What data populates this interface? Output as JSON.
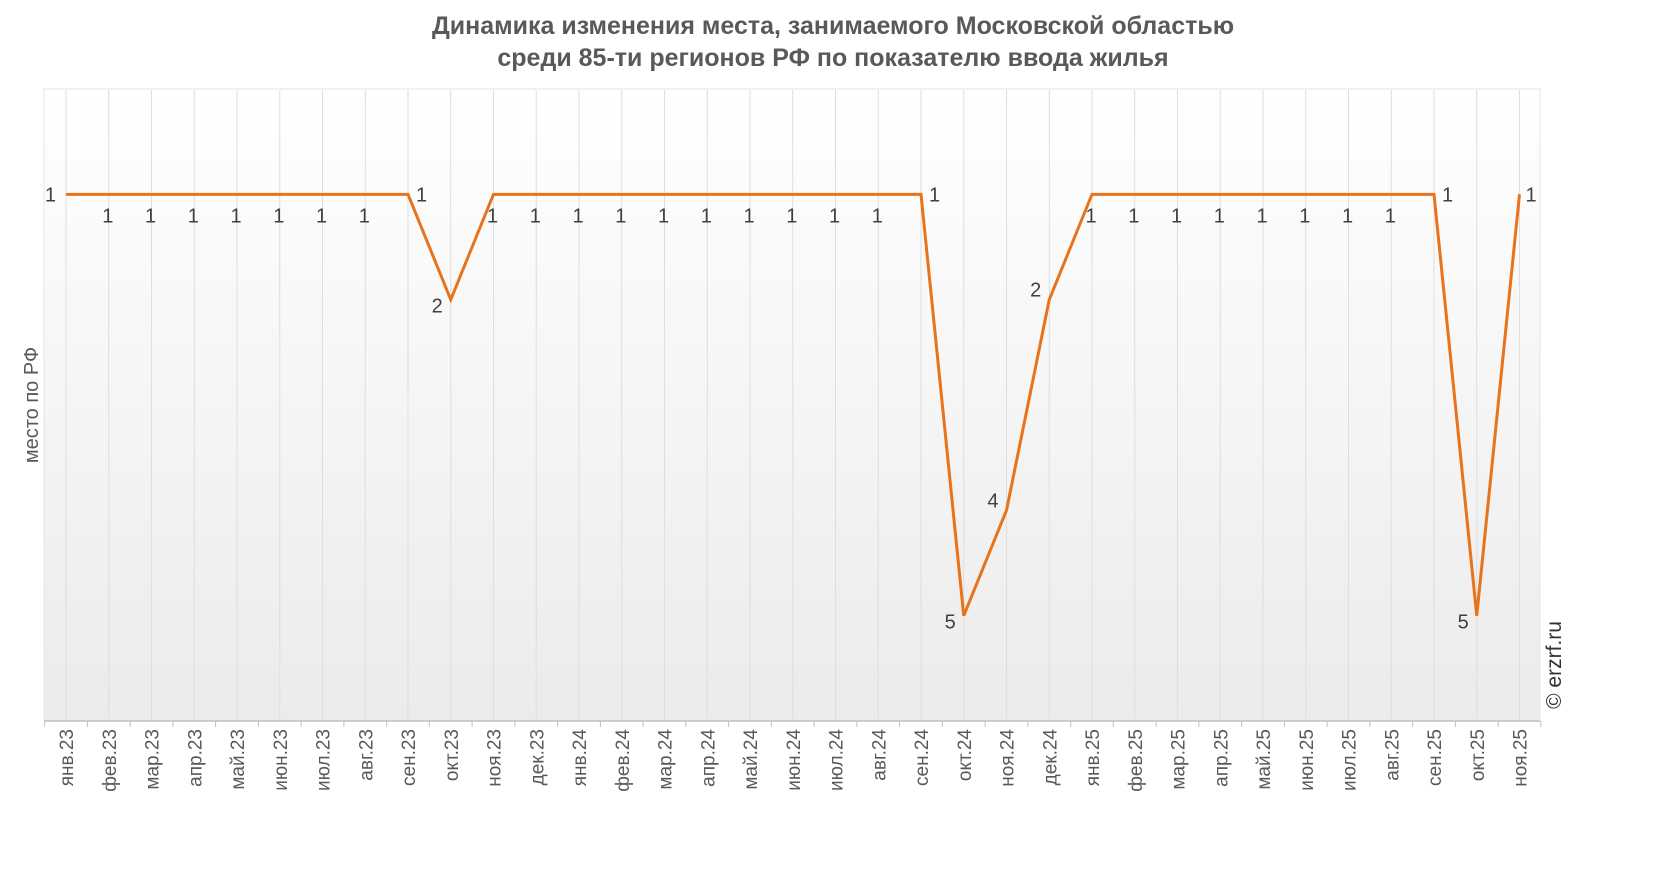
{
  "chart_data": {
    "type": "line",
    "title_lines": [
      "Динамика изменения места, занимаемого Московской областью",
      "среди 85-ти регионов РФ по показателю ввода жилья"
    ],
    "xlabel": "",
    "ylabel": "место по РФ",
    "y_reversed": true,
    "ylim": [
      0,
      6
    ],
    "grid": "vertical",
    "categories": [
      "янв.23",
      "фев.23",
      "мар.23",
      "апр.23",
      "май.23",
      "июн.23",
      "июл.23",
      "авг.23",
      "сен.23",
      "окт.23",
      "ноя.23",
      "дек.23",
      "янв.24",
      "фев.24",
      "мар.24",
      "апр.24",
      "май.24",
      "июн.24",
      "июл.24",
      "авг.24",
      "сен.24",
      "окт.24",
      "ноя.24",
      "дек.24",
      "янв.25",
      "фев.25",
      "мар.25",
      "апр.25",
      "май.25",
      "июн.25",
      "июл.25",
      "авг.25",
      "сен.25",
      "окт.25",
      "ноя.25"
    ],
    "series": [
      {
        "values": [
          1,
          1,
          1,
          1,
          1,
          1,
          1,
          1,
          1,
          2,
          1,
          1,
          1,
          1,
          1,
          1,
          1,
          1,
          1,
          1,
          1,
          5,
          4,
          2,
          1,
          1,
          1,
          1,
          1,
          1,
          1,
          1,
          1,
          5,
          1
        ],
        "color": "#e8731a"
      }
    ]
  },
  "watermark": "© erzrf.ru"
}
